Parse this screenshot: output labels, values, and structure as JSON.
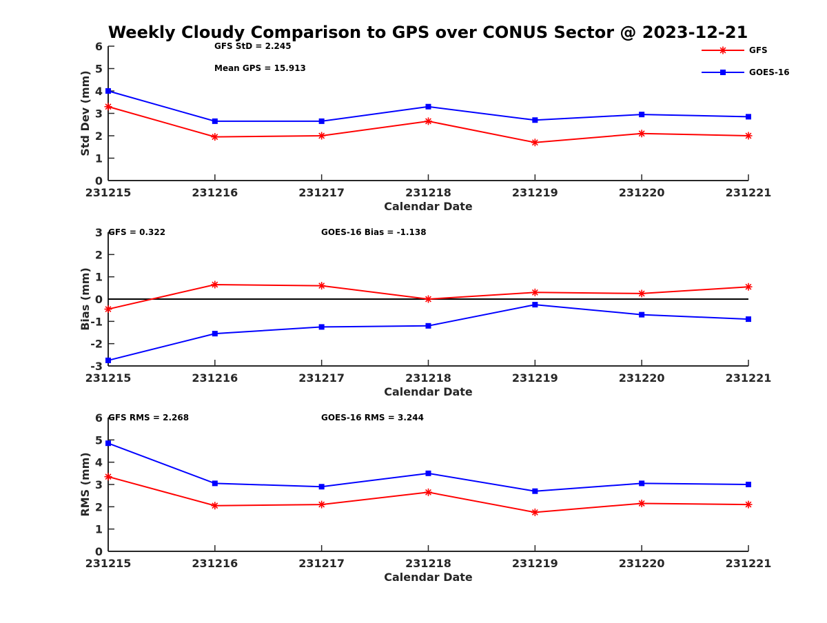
{
  "chart_data": {
    "type": "line",
    "title": "Weekly Cloudy Comparison to GPS over CONUS Sector @ 2023-12-21",
    "categories": [
      "231215",
      "231216",
      "231217",
      "231218",
      "231219",
      "231220",
      "231221"
    ],
    "legend": {
      "placement": "top-right",
      "entries": [
        {
          "name": "GFS",
          "color": "#ff0000",
          "marker": "asterisk"
        },
        {
          "name": "GOES-16",
          "color": "#0000ff",
          "marker": "square"
        }
      ]
    },
    "panels": [
      {
        "ylabel": "Std Dev (mm)",
        "xlabel": "Calendar Date",
        "ylim": [
          0,
          6
        ],
        "yticks": [
          0,
          1,
          2,
          3,
          4,
          5,
          6
        ],
        "zero_line": false,
        "annotations": [
          "GFS StD = 2.245",
          "Mean GPS = 15.913"
        ],
        "series": [
          {
            "name": "GFS",
            "color": "#ff0000",
            "marker": "asterisk",
            "values": [
              3.3,
              1.95,
              2.0,
              2.65,
              1.7,
              2.1,
              2.0
            ]
          },
          {
            "name": "GOES-16",
            "color": "#0000ff",
            "marker": "square",
            "values": [
              4.0,
              2.65,
              2.65,
              3.3,
              2.7,
              2.95,
              2.85
            ]
          }
        ]
      },
      {
        "ylabel": "Bias (mm)",
        "xlabel": "Calendar Date",
        "ylim": [
          -3,
          3
        ],
        "yticks": [
          -3,
          -2,
          -1,
          0,
          1,
          2,
          3
        ],
        "zero_line": true,
        "annotations": [
          "GFS = 0.322",
          "GOES-16 Bias  = -1.138"
        ],
        "series": [
          {
            "name": "GFS",
            "color": "#ff0000",
            "marker": "asterisk",
            "values": [
              -0.45,
              0.65,
              0.6,
              0.0,
              0.3,
              0.25,
              0.55
            ]
          },
          {
            "name": "GOES-16",
            "color": "#0000ff",
            "marker": "square",
            "values": [
              -2.75,
              -1.55,
              -1.25,
              -1.2,
              -0.25,
              -0.7,
              -0.9
            ]
          }
        ]
      },
      {
        "ylabel": "RMS (mm)",
        "xlabel": "Calendar Date",
        "ylim": [
          0,
          6
        ],
        "yticks": [
          0,
          1,
          2,
          3,
          4,
          5,
          6
        ],
        "zero_line": false,
        "annotations": [
          "GFS RMS = 2.268",
          "GOES-16 RMS = 3.244"
        ],
        "series": [
          {
            "name": "GFS",
            "color": "#ff0000",
            "marker": "asterisk",
            "values": [
              3.35,
              2.05,
              2.1,
              2.65,
              1.75,
              2.15,
              2.1
            ]
          },
          {
            "name": "GOES-16",
            "color": "#0000ff",
            "marker": "square",
            "values": [
              4.85,
              3.05,
              2.9,
              3.5,
              2.7,
              3.05,
              3.0
            ]
          }
        ]
      }
    ]
  }
}
